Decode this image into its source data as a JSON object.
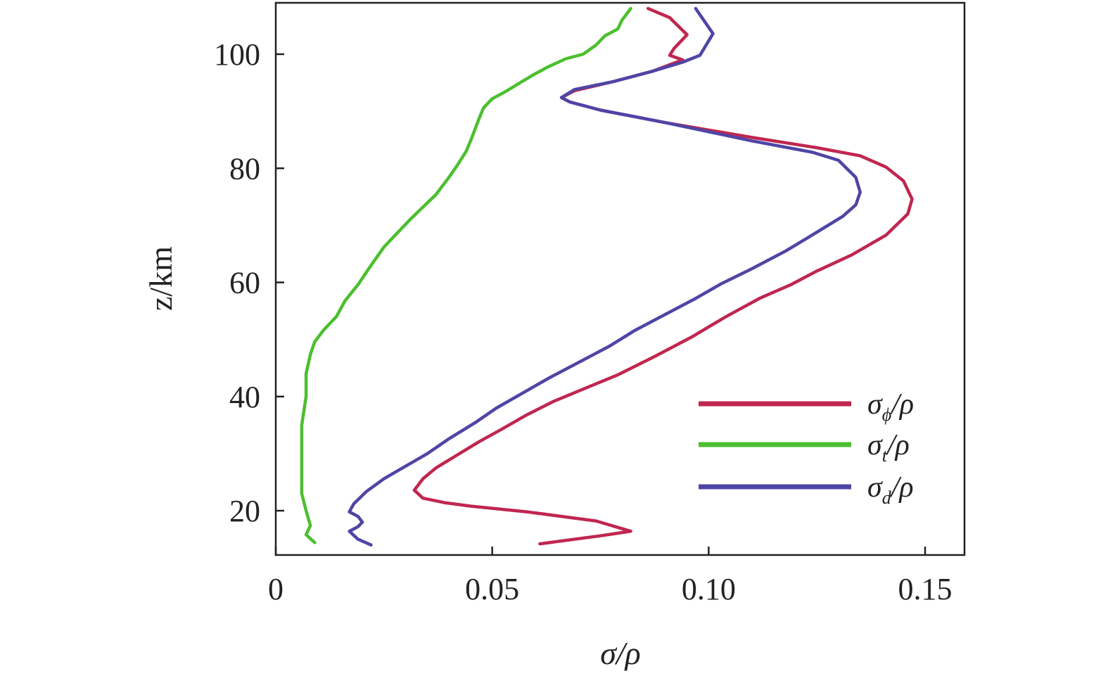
{
  "chart_data": {
    "type": "line",
    "xlabel": "σ/ρ",
    "ylabel": "z/km",
    "xlim": [
      0,
      0.16
    ],
    "ylim": [
      13,
      110
    ],
    "x_ticks": [
      0,
      0.05,
      0.1,
      0.15
    ],
    "x_tick_labels": [
      "0",
      "0.05",
      "0.10",
      "0.15"
    ],
    "y_ticks": [
      20,
      40,
      60,
      80,
      100
    ],
    "y_tick_labels": [
      "20",
      "40",
      "60",
      "80",
      "100"
    ],
    "grid": false,
    "legend_position": "bottom-right",
    "series": [
      {
        "name": "σ_ϕ/ρ",
        "legend_main": "σ",
        "legend_sub": "ϕ",
        "legend_tail": "/ρ",
        "color": "#c0264f",
        "points": [
          [
            0.061,
            14.2
          ],
          [
            0.075,
            15.6
          ],
          [
            0.082,
            16.4
          ],
          [
            0.074,
            18.2
          ],
          [
            0.058,
            19.8
          ],
          [
            0.045,
            20.8
          ],
          [
            0.039,
            21.4
          ],
          [
            0.034,
            22.2
          ],
          [
            0.032,
            23.6
          ],
          [
            0.034,
            25.6
          ],
          [
            0.037,
            27.5
          ],
          [
            0.042,
            29.8
          ],
          [
            0.047,
            32.1
          ],
          [
            0.052,
            34.2
          ],
          [
            0.058,
            36.8
          ],
          [
            0.064,
            39.1
          ],
          [
            0.071,
            41.3
          ],
          [
            0.079,
            43.8
          ],
          [
            0.088,
            47.2
          ],
          [
            0.096,
            50.4
          ],
          [
            0.104,
            54.0
          ],
          [
            0.112,
            57.3
          ],
          [
            0.119,
            59.6
          ],
          [
            0.125,
            62.0
          ],
          [
            0.133,
            64.8
          ],
          [
            0.141,
            68.3
          ],
          [
            0.146,
            72.0
          ],
          [
            0.147,
            74.6
          ],
          [
            0.145,
            77.8
          ],
          [
            0.141,
            80.2
          ],
          [
            0.135,
            82.2
          ],
          [
            0.125,
            83.6
          ],
          [
            0.11,
            85.4
          ],
          [
            0.09,
            88.0
          ],
          [
            0.075,
            90.2
          ],
          [
            0.068,
            91.6
          ],
          [
            0.066,
            92.4
          ],
          [
            0.069,
            93.6
          ],
          [
            0.078,
            95.2
          ],
          [
            0.087,
            97.0
          ],
          [
            0.094,
            99.0
          ],
          [
            0.091,
            99.8
          ],
          [
            0.092,
            101.0
          ],
          [
            0.095,
            103.4
          ],
          [
            0.091,
            106.4
          ],
          [
            0.086,
            108.0
          ]
        ]
      },
      {
        "name": "σ_t/ρ",
        "legend_main": "σ",
        "legend_sub": "t",
        "legend_tail": "/ρ",
        "color": "#4bbf2e",
        "points": [
          [
            0.009,
            14.4
          ],
          [
            0.007,
            15.8
          ],
          [
            0.008,
            17.4
          ],
          [
            0.007,
            20.0
          ],
          [
            0.006,
            23.0
          ],
          [
            0.006,
            26.0
          ],
          [
            0.006,
            30.0
          ],
          [
            0.006,
            35.0
          ],
          [
            0.007,
            40.0
          ],
          [
            0.007,
            44.0
          ],
          [
            0.008,
            47.4
          ],
          [
            0.009,
            49.6
          ],
          [
            0.011,
            51.6
          ],
          [
            0.014,
            54.0
          ],
          [
            0.016,
            56.8
          ],
          [
            0.019,
            59.6
          ],
          [
            0.022,
            63.0
          ],
          [
            0.025,
            66.2
          ],
          [
            0.028,
            68.6
          ],
          [
            0.031,
            71.0
          ],
          [
            0.034,
            73.2
          ],
          [
            0.037,
            75.4
          ],
          [
            0.04,
            78.4
          ],
          [
            0.042,
            80.6
          ],
          [
            0.044,
            83.0
          ],
          [
            0.045,
            84.8
          ],
          [
            0.046,
            86.8
          ],
          [
            0.047,
            88.8
          ],
          [
            0.048,
            90.6
          ],
          [
            0.05,
            92.2
          ],
          [
            0.053,
            93.4
          ],
          [
            0.056,
            94.8
          ],
          [
            0.06,
            96.6
          ],
          [
            0.063,
            97.8
          ],
          [
            0.067,
            99.2
          ],
          [
            0.071,
            100.0
          ],
          [
            0.074,
            101.6
          ],
          [
            0.076,
            103.2
          ],
          [
            0.079,
            104.4
          ],
          [
            0.08,
            106.0
          ],
          [
            0.082,
            108.0
          ]
        ]
      },
      {
        "name": "σ_d/ρ",
        "legend_main": "σ",
        "legend_sub": "d",
        "legend_tail": "/ρ",
        "color": "#4e45a6",
        "points": [
          [
            0.022,
            14.0
          ],
          [
            0.019,
            15.0
          ],
          [
            0.017,
            16.4
          ],
          [
            0.019,
            17.2
          ],
          [
            0.02,
            18.0
          ],
          [
            0.019,
            19.0
          ],
          [
            0.017,
            19.8
          ],
          [
            0.018,
            21.2
          ],
          [
            0.021,
            23.4
          ],
          [
            0.025,
            25.6
          ],
          [
            0.03,
            27.8
          ],
          [
            0.035,
            30.0
          ],
          [
            0.04,
            32.6
          ],
          [
            0.046,
            35.4
          ],
          [
            0.051,
            38.0
          ],
          [
            0.057,
            40.6
          ],
          [
            0.063,
            43.2
          ],
          [
            0.07,
            46.0
          ],
          [
            0.077,
            48.8
          ],
          [
            0.083,
            51.6
          ],
          [
            0.09,
            54.4
          ],
          [
            0.097,
            57.2
          ],
          [
            0.103,
            59.8
          ],
          [
            0.11,
            62.4
          ],
          [
            0.118,
            65.6
          ],
          [
            0.125,
            68.8
          ],
          [
            0.131,
            71.6
          ],
          [
            0.134,
            73.6
          ],
          [
            0.135,
            75.8
          ],
          [
            0.134,
            78.4
          ],
          [
            0.13,
            81.4
          ],
          [
            0.124,
            82.8
          ],
          [
            0.11,
            84.8
          ],
          [
            0.09,
            88.0
          ],
          [
            0.075,
            90.2
          ],
          [
            0.068,
            91.6
          ],
          [
            0.066,
            92.4
          ],
          [
            0.069,
            93.8
          ],
          [
            0.078,
            95.2
          ],
          [
            0.087,
            97.0
          ],
          [
            0.094,
            98.6
          ],
          [
            0.098,
            99.8
          ],
          [
            0.101,
            103.6
          ],
          [
            0.097,
            108.0
          ]
        ]
      }
    ]
  }
}
